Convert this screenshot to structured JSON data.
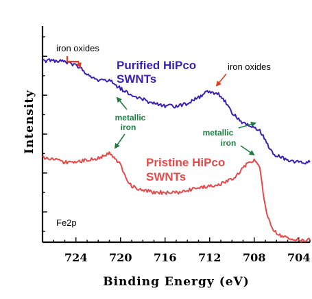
{
  "chart_data": {
    "type": "line",
    "xlabel": "Binding Energy  (eV)",
    "ylabel": "Intensity",
    "xlim": [
      727,
      703
    ],
    "x_ticks": [
      724,
      720,
      716,
      712,
      708,
      704
    ],
    "y_scale": "arbitrary units (no tick labels)",
    "panel_label": "Fe2p",
    "series": [
      {
        "name": "Purified HiPco SWNTs",
        "color": "#3a1fb0",
        "x": [
          727,
          725.5,
          724,
          723,
          722,
          721,
          720,
          719,
          718,
          717,
          716,
          715,
          714,
          713,
          712,
          711,
          710,
          709,
          708,
          707.5,
          707,
          706.5,
          706,
          705,
          704,
          703
        ],
        "y": [
          0.84,
          0.84,
          0.82,
          0.78,
          0.75,
          0.75,
          0.71,
          0.68,
          0.66,
          0.64,
          0.63,
          0.63,
          0.64,
          0.67,
          0.7,
          0.68,
          0.6,
          0.55,
          0.53,
          0.52,
          0.47,
          0.42,
          0.4,
          0.38,
          0.37,
          0.37
        ]
      },
      {
        "name": "Pristine HiPco SWNTs",
        "color": "#e44a4a",
        "x": [
          727,
          726,
          725,
          724,
          723,
          722,
          721,
          720,
          719.5,
          719,
          718,
          717,
          716,
          715,
          714,
          713,
          712,
          711,
          710,
          709,
          708.5,
          708,
          707.5,
          707,
          706.5,
          706,
          705,
          704,
          703
        ],
        "y": [
          0.39,
          0.38,
          0.37,
          0.37,
          0.38,
          0.39,
          0.41,
          0.36,
          0.29,
          0.26,
          0.24,
          0.23,
          0.23,
          0.23,
          0.24,
          0.25,
          0.26,
          0.27,
          0.29,
          0.34,
          0.37,
          0.38,
          0.34,
          0.16,
          0.07,
          0.04,
          0.02,
          0.01,
          0.01
        ]
      }
    ],
    "annotations": [
      {
        "text": "iron oxides",
        "color": "#000000"
      },
      {
        "text": "iron oxides",
        "color": "#000000"
      },
      {
        "text_lines": [
          "Purified HiPco",
          "SWNTs"
        ],
        "color": "#3a1fb0"
      },
      {
        "text_lines": [
          "Pristine HiPco",
          "SWNTs"
        ],
        "color": "#e44a4a"
      },
      {
        "text_lines": [
          "metallic",
          "iron"
        ],
        "color": "#1e7a3e"
      },
      {
        "text_lines": [
          "metallic",
          "iron"
        ],
        "color": "#1e7a3e"
      }
    ],
    "grid": false,
    "legend": "none (series labeled in plot)"
  }
}
